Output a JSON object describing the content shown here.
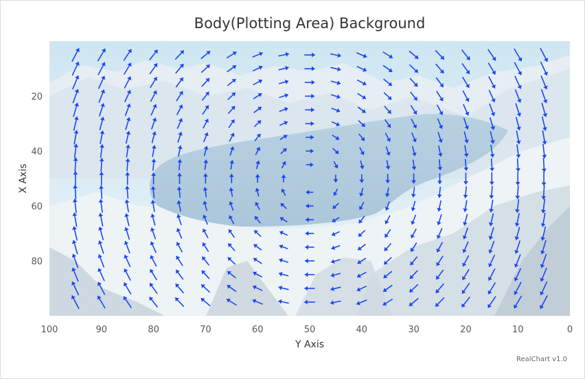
{
  "chart_data": {
    "type": "vector",
    "title": "Body(Plotting Area) Background",
    "xlabel": "Y Axis",
    "ylabel": "X Axis",
    "x_range": [
      100,
      0
    ],
    "y_range": [
      0,
      100
    ],
    "x_ticks": [
      "100",
      "90",
      "80",
      "70",
      "60",
      "50",
      "40",
      "30",
      "20",
      "10",
      "0"
    ],
    "y_ticks": [
      "20",
      "40",
      "60",
      "80"
    ],
    "y_tick_values": [
      20,
      40,
      60,
      80
    ],
    "x_tick_values": [
      100,
      90,
      80,
      70,
      60,
      50,
      40,
      30,
      20,
      10,
      0
    ],
    "grid": false,
    "legend": "none",
    "vector_grid": {
      "x_values": [
        95,
        90,
        85,
        80,
        75,
        70,
        65,
        60,
        55,
        50,
        45,
        40,
        35,
        30,
        25,
        20,
        15,
        10,
        5
      ],
      "y_values": [
        5,
        10,
        15,
        20,
        25,
        30,
        35,
        40,
        45,
        50,
        55,
        60,
        65,
        70,
        75,
        80,
        85,
        90,
        95
      ],
      "note_field": "direction follows a clockwise vortex centred near x=50, y=50; top row points right, rows near the middle left column point up"
    },
    "arrow_color": "#1a46f0",
    "background": "snowy crater lake photograph",
    "credit": "RealChart v1.0"
  }
}
